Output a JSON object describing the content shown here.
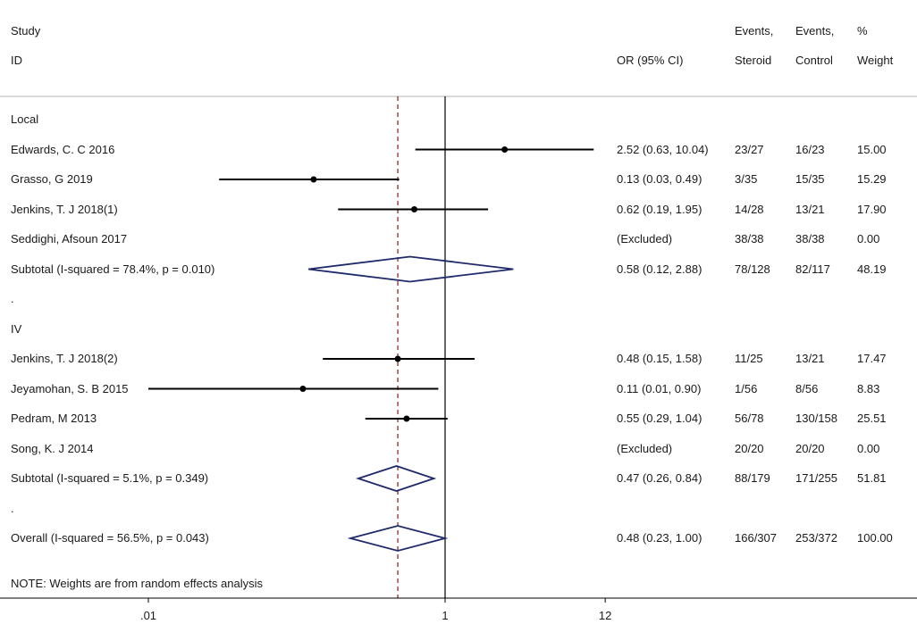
{
  "headers": {
    "study": "Study",
    "id": "ID",
    "or_ci": "OR (95% CI)",
    "events_steroid_1": "Events,",
    "events_steroid_2": "Steroid",
    "events_control_1": "Events,",
    "events_control_2": "Control",
    "weight_1": "%",
    "weight_2": "Weight"
  },
  "note": "NOTE: Weights are from random effects analysis",
  "chart_data": {
    "type": "forest",
    "x_scale": "log",
    "x_ticks": [
      {
        "value": 0.01,
        "label": ".01"
      },
      {
        "value": 1,
        "label": "1"
      },
      {
        "value": 12,
        "label": "12"
      }
    ],
    "null_line": 1,
    "overall_line": 0.48,
    "colors": {
      "points": "#000000",
      "diamond": "#1f2a6b",
      "overall_line": "#8b1a1a",
      "axis": "#000000"
    },
    "rows": [
      {
        "kind": "group",
        "label": "Local"
      },
      {
        "kind": "study",
        "label": "Edwards, C. C 2016",
        "or": 2.52,
        "lo": 0.63,
        "hi": 10.04,
        "or_text": "2.52 (0.63, 10.04)",
        "ev_s": "23/27",
        "ev_c": "16/23",
        "weight": "15.00"
      },
      {
        "kind": "study",
        "label": "Grasso, G 2019",
        "or": 0.13,
        "lo": 0.03,
        "hi": 0.49,
        "or_text": "0.13 (0.03, 0.49)",
        "ev_s": "3/35",
        "ev_c": "15/35",
        "weight": "15.29"
      },
      {
        "kind": "study",
        "label": "Jenkins, T. J 2018(1)",
        "or": 0.62,
        "lo": 0.19,
        "hi": 1.95,
        "or_text": "0.62 (0.19, 1.95)",
        "ev_s": "14/28",
        "ev_c": "13/21",
        "weight": "17.90"
      },
      {
        "kind": "excluded",
        "label": "Seddighi, Afsoun 2017",
        "or_text": "(Excluded)",
        "ev_s": "38/38",
        "ev_c": "38/38",
        "weight": "0.00"
      },
      {
        "kind": "subtotal",
        "label": "Subtotal  (I-squared = 78.4%, p = 0.010)",
        "or": 0.58,
        "lo": 0.12,
        "hi": 2.88,
        "or_text": "0.58 (0.12, 2.88)",
        "ev_s": "78/128",
        "ev_c": "82/117",
        "weight": "48.19"
      },
      {
        "kind": "spacer",
        "label": "."
      },
      {
        "kind": "group",
        "label": "IV"
      },
      {
        "kind": "study",
        "label": "Jenkins, T. J 2018(2)",
        "or": 0.48,
        "lo": 0.15,
        "hi": 1.58,
        "or_text": "0.48 (0.15, 1.58)",
        "ev_s": "11/25",
        "ev_c": "13/21",
        "weight": "17.47"
      },
      {
        "kind": "study",
        "label": "Jeyamohan, S. B 2015",
        "or": 0.11,
        "lo": 0.01,
        "hi": 0.9,
        "or_text": "0.11 (0.01, 0.90)",
        "ev_s": "1/56",
        "ev_c": "8/56",
        "weight": "8.83"
      },
      {
        "kind": "study",
        "label": "Pedram, M 2013",
        "or": 0.55,
        "lo": 0.29,
        "hi": 1.04,
        "or_text": "0.55 (0.29, 1.04)",
        "ev_s": "56/78",
        "ev_c": "130/158",
        "weight": "25.51"
      },
      {
        "kind": "excluded",
        "label": "Song, K. J 2014",
        "or_text": "(Excluded)",
        "ev_s": "20/20",
        "ev_c": "20/20",
        "weight": "0.00"
      },
      {
        "kind": "subtotal",
        "label": "Subtotal  (I-squared = 5.1%, p = 0.349)",
        "or": 0.47,
        "lo": 0.26,
        "hi": 0.84,
        "or_text": "0.47 (0.26, 0.84)",
        "ev_s": "88/179",
        "ev_c": "171/255",
        "weight": "51.81"
      },
      {
        "kind": "spacer",
        "label": "."
      },
      {
        "kind": "overall",
        "label": "Overall  (I-squared = 56.5%, p = 0.043)",
        "or": 0.48,
        "lo": 0.23,
        "hi": 1.0,
        "or_text": "0.48 (0.23, 1.00)",
        "ev_s": "166/307",
        "ev_c": "253/372",
        "weight": "100.00"
      }
    ]
  }
}
